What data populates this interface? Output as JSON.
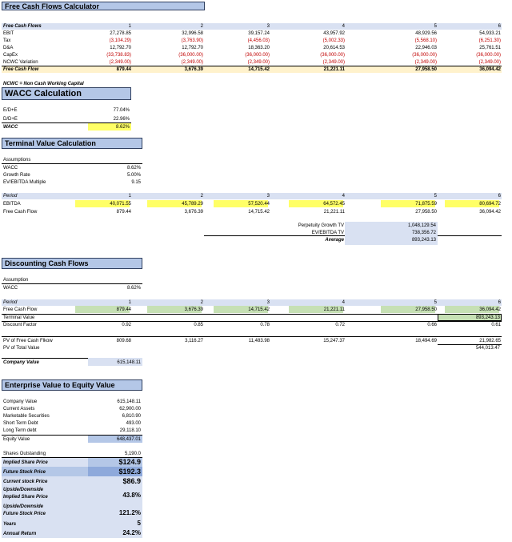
{
  "fcf": {
    "title": "Free Cash Flows Calculator",
    "header_label": "Free Cash Flows",
    "years": [
      "1",
      "2",
      "3",
      "4",
      "5",
      "6"
    ],
    "rows": [
      {
        "label": "EBIT",
        "values": [
          "27,278.85",
          "32,996.58",
          "39,157.24",
          "43,957.92",
          "48,929.56",
          "54,933.21"
        ],
        "neg": false
      },
      {
        "label": "Tax",
        "values": [
          "(3,104.29)",
          "(3,763.90)",
          "(4,456.03)",
          "(5,002.33)",
          "(5,568.10)",
          "(6,251.30)"
        ],
        "neg": true
      },
      {
        "label": "D&A",
        "values": [
          "12,792.70",
          "12,792.70",
          "18,363.20",
          "20,614.53",
          "22,946.03",
          "25,761.51"
        ],
        "neg": false
      },
      {
        "label": "CapEx",
        "values": [
          "(33,738.83)",
          "(36,000.00)",
          "(36,000.00)",
          "(36,000.00)",
          "(36,000.00)",
          "(36,000.00)"
        ],
        "neg": true
      },
      {
        "label": "NCWC Variation",
        "values": [
          "(2,349.00)",
          "(2,349.00)",
          "(2,349.00)",
          "(2,349.00)",
          "(2,349.00)",
          "(2,349.00)"
        ],
        "neg": true
      }
    ],
    "total_label": "Free Cash Flow",
    "total_values": [
      "879.44",
      "3,676.39",
      "14,715.42",
      "21,221.11",
      "27,958.50",
      "36,094.42"
    ],
    "footnote": "NCWC = Non Cash Working Capital"
  },
  "wacc": {
    "title": "WACC Calculation",
    "rows": [
      {
        "label": "E/D+E",
        "value": "77.04%"
      },
      {
        "label": "D/D+E",
        "value": "22.96%"
      }
    ],
    "result_label": "WACC",
    "result_value": "8.62%"
  },
  "tv": {
    "title": "Terminal Value Calculation",
    "assumptions_label": "Assumptions",
    "rows": [
      {
        "label": "WACC",
        "value": "8.62%"
      },
      {
        "label": "Growth Rate",
        "value": "5.00%"
      },
      {
        "label": "EV/EBITDA Multiple",
        "value": "9.15"
      }
    ],
    "period_label": "Period",
    "periods": [
      "1",
      "2",
      "3",
      "4",
      "5",
      "6"
    ],
    "ebitda_label": "EBITDA",
    "ebitda": [
      "40,071.55",
      "45,789.29",
      "57,520.44",
      "64,572.45",
      "71,875.59",
      "80,694.72"
    ],
    "fcf_label": "Free Cash Flow",
    "fcf": [
      "879.44",
      "3,676.39",
      "14,715.42",
      "21,221.11",
      "27,958.50",
      "36,094.42"
    ],
    "pg_label": "Perpetuity Growth TV",
    "pg_value": "1,048,129.54",
    "ev_label": "EV/EBITDA TV",
    "ev_value": "738,356.72",
    "avg_label": "Average",
    "avg_value": "893,243.13"
  },
  "dcf": {
    "title": "Discounting Cash Flows",
    "assumption_label": "Assumption",
    "wacc_label": "WACC",
    "wacc_value": "8.62%",
    "period_label": "Period",
    "periods": [
      "1",
      "2",
      "3",
      "4",
      "5",
      "6"
    ],
    "fcf_label": "Free Cash Flow",
    "fcf": [
      "879.44",
      "3,676.39",
      "14,715.42",
      "21,221.11",
      "27,958.50",
      "36,094.42"
    ],
    "tv_label": "Terminal Value",
    "tv_value": "893,243.13",
    "df_label": "Discount Factor",
    "df": [
      "0.92",
      "0.85",
      "0.78",
      "0.72",
      "0.66",
      "0.61"
    ],
    "pvfcf_label": "PV of Free Cash Flkow",
    "pvfcf": [
      "809.68",
      "3,116.27",
      "11,483.98",
      "15,247.37",
      "18,494.69",
      "21,982.65"
    ],
    "pvtv_label": "PV of Total Value",
    "pvtv_value": "544,013.47",
    "cv_label": "Company Value",
    "cv_value": "615,148.11"
  },
  "ev": {
    "title": "Enterprise Value to Equity Value",
    "rows": [
      {
        "label": "Company Value",
        "value": "615,148.11"
      },
      {
        "label": "Current Assets",
        "value": "62,900.00"
      },
      {
        "label": "Marketable Securities",
        "value": "6,810.90"
      },
      {
        "label": "Short Term Debt",
        "value": "493.00"
      },
      {
        "label": "Long Term debt",
        "value": "29,118.10"
      }
    ],
    "equity_label": "Equity Value",
    "equity_value": "648,437.01",
    "shares_label": "Shares Outstanding",
    "shares_value": "5,190.0",
    "isp_label": "Implied Share Price",
    "isp_value": "$124.9",
    "fsp_label": "Future Stock Price",
    "fsp_value": "$192.3",
    "csp_label": "Current stock Price",
    "csp_value": "$86.9",
    "ud1_label1": "Upside/Downside",
    "ud1_label2": "Implied Share Price",
    "ud1_value": "43.8%",
    "ud2_label1": "Upside/Downside",
    "ud2_label2": "Future Stock Price",
    "ud2_value": "121.2%",
    "years_label": "Years",
    "years_value": "5",
    "ar_label": "Annual Return",
    "ar_value": "24.2%"
  },
  "colors": {
    "header_blue": "#b4c7e7",
    "band_blue": "#d9e1f2",
    "highlight_yellow": "#ffff66",
    "light_yellow": "#fff2cc",
    "green": "#c6e0b4",
    "negative_red": "#c00000"
  }
}
